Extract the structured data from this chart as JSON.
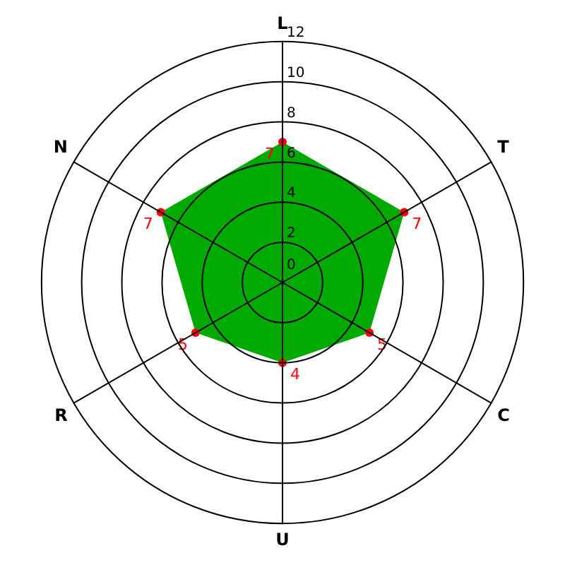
{
  "chart_data": {
    "type": "radar",
    "categories": [
      "L",
      "T",
      "C",
      "U",
      "R",
      "N"
    ],
    "series": [
      {
        "color": "#00aa00",
        "colors": [
          "#ff0000",
          "#ff0000",
          "#ff0000",
          "#ff0000",
          "#ff0000",
          "#ff0000"
        ],
        "values": [
          7,
          7,
          5,
          4,
          5,
          7
        ]
      }
    ],
    "ylim": [
      0,
      12
    ],
    "yticks": [
      0,
      2,
      4,
      6,
      8,
      10,
      12
    ],
    "grid": true,
    "marker": "circle",
    "data_labels": true,
    "legend": false
  }
}
